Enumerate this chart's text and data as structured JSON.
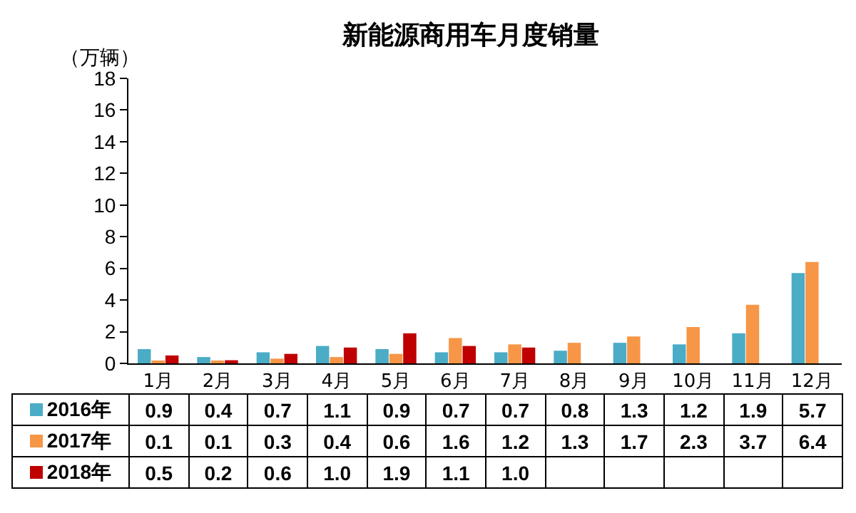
{
  "chart_data": {
    "type": "bar",
    "title": "新能源商用车月度销量",
    "ylabel": "（万辆）",
    "categories": [
      "1月",
      "2月",
      "3月",
      "4月",
      "5月",
      "6月",
      "7月",
      "8月",
      "9月",
      "10月",
      "11月",
      "12月"
    ],
    "series": [
      {
        "name": "2016年",
        "color": "#4bacc6",
        "values": [
          0.9,
          0.4,
          0.7,
          1.1,
          0.9,
          0.7,
          0.7,
          0.8,
          1.3,
          1.2,
          1.9,
          5.7
        ],
        "value_labels": [
          "0.9",
          "0.4",
          "0.7",
          "1.1",
          "0.9",
          "0.7",
          "0.7",
          "0.8",
          "1.3",
          "1.2",
          "1.9",
          "5.7"
        ]
      },
      {
        "name": "2017年",
        "color": "#f79646",
        "values": [
          0.1,
          0.1,
          0.3,
          0.4,
          0.6,
          1.6,
          1.2,
          1.3,
          1.7,
          2.3,
          3.7,
          6.4
        ],
        "value_labels": [
          "0.1",
          "0.1",
          "0.3",
          "0.4",
          "0.6",
          "1.6",
          "1.2",
          "1.3",
          "1.7",
          "2.3",
          "3.7",
          "6.4"
        ]
      },
      {
        "name": "2018年",
        "color": "#c00000",
        "values": [
          0.5,
          0.2,
          0.6,
          1.0,
          1.9,
          1.1,
          1.0,
          null,
          null,
          null,
          null,
          null
        ],
        "value_labels": [
          "0.5",
          "0.2",
          "0.6",
          "1.0",
          "1.9",
          "1.1",
          "1.0",
          null,
          null,
          null,
          null,
          null
        ]
      }
    ],
    "ylim": [
      0,
      18
    ],
    "yticks": [
      0,
      2,
      4,
      6,
      8,
      10,
      12,
      14,
      16,
      18
    ],
    "grid": false,
    "legend": "bottom left"
  }
}
